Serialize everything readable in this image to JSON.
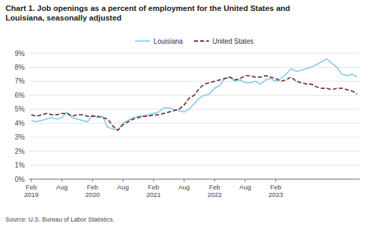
{
  "chart_data": {
    "type": "line",
    "title": "Chart 1. Job openings as a percent of employment for the United States and\nLouisiana, seasonally adjusted",
    "source": "Source: U.S. Bureau of Labor Statistics.",
    "categories": [
      "Feb\n2019",
      null,
      null,
      null,
      null,
      null,
      "Aug",
      null,
      null,
      null,
      null,
      null,
      "Feb\n2020",
      null,
      null,
      null,
      null,
      null,
      "Aug",
      null,
      null,
      null,
      null,
      null,
      "Feb\n2021",
      null,
      null,
      null,
      null,
      null,
      "Aug",
      null,
      null,
      null,
      null,
      null,
      "Feb\n2022",
      null,
      null,
      null,
      null,
      null,
      "Aug",
      null,
      null,
      null,
      null,
      null,
      "Feb\n2023",
      null,
      null,
      null,
      null,
      null,
      null,
      null,
      null,
      null,
      null,
      null,
      null,
      null,
      null,
      null,
      null
    ],
    "series": [
      {
        "name": "Louisiana",
        "color": "#87CEEB",
        "line_style": "solid",
        "values": [
          4.2,
          4.1,
          4.2,
          4.3,
          4.4,
          4.3,
          4.4,
          4.8,
          4.4,
          4.3,
          4.2,
          4.1,
          4.6,
          4.4,
          4.5,
          3.7,
          3.6,
          3.5,
          4.0,
          4.2,
          4.4,
          4.5,
          4.5,
          4.6,
          4.7,
          4.8,
          5.1,
          5.1,
          5.0,
          4.9,
          4.8,
          5.0,
          5.4,
          5.8,
          6.0,
          6.1,
          6.5,
          6.7,
          7.2,
          7.3,
          7.0,
          7.1,
          6.9,
          6.9,
          7.0,
          6.8,
          7.1,
          7.2,
          7.0,
          7.2,
          7.5,
          7.9,
          7.7,
          7.8,
          7.9,
          8.0,
          8.2,
          8.4,
          8.6,
          8.3,
          8.0,
          7.5,
          7.4,
          7.5,
          7.3
        ]
      },
      {
        "name": "United States",
        "color": "#722F37",
        "line_style": "dashed",
        "values": [
          4.6,
          4.5,
          4.6,
          4.7,
          4.6,
          4.6,
          4.7,
          4.7,
          4.5,
          4.6,
          4.6,
          4.5,
          4.5,
          4.5,
          4.4,
          4.3,
          3.8,
          3.5,
          3.9,
          4.1,
          4.3,
          4.4,
          4.5,
          4.5,
          4.6,
          4.6,
          4.7,
          4.8,
          4.9,
          5.0,
          5.3,
          5.8,
          6.0,
          6.5,
          6.8,
          6.9,
          7.0,
          7.1,
          7.2,
          7.3,
          7.1,
          7.2,
          7.4,
          7.4,
          7.3,
          7.3,
          7.4,
          7.3,
          7.2,
          7.0,
          7.1,
          7.3,
          7.0,
          6.9,
          6.8,
          6.8,
          6.6,
          6.5,
          6.5,
          6.4,
          6.5,
          6.5,
          6.4,
          6.3,
          6.1
        ]
      }
    ],
    "ylim": [
      0,
      9
    ],
    "yticks": [
      {
        "value": 0,
        "label": "0%"
      },
      {
        "value": 1,
        "label": "1%"
      },
      {
        "value": 2,
        "label": "2%"
      },
      {
        "value": 3,
        "label": "3%"
      },
      {
        "value": 4,
        "label": "4%"
      },
      {
        "value": 5,
        "label": "5%"
      },
      {
        "value": 6,
        "label": "6%"
      },
      {
        "value": 7,
        "label": "7%"
      },
      {
        "value": 8,
        "label": "8%"
      },
      {
        "value": 9,
        "label": "9%"
      }
    ],
    "grid": true,
    "legend": "top"
  }
}
